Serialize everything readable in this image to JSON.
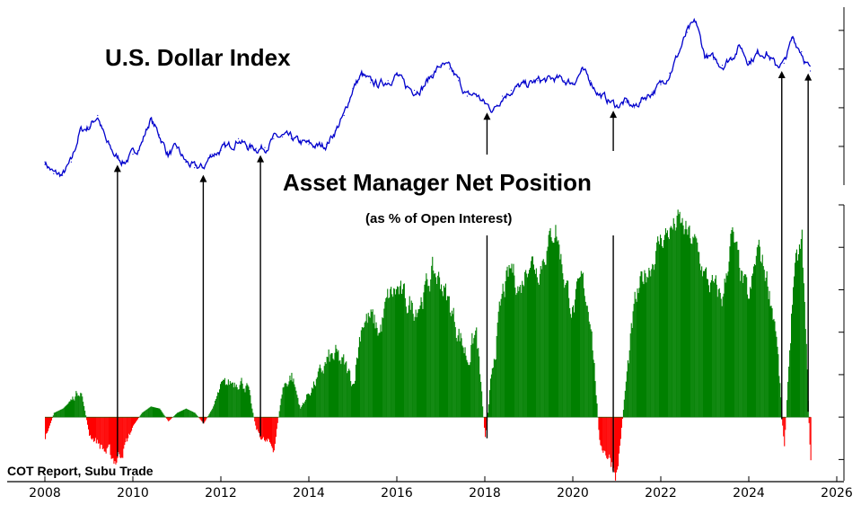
{
  "chart_data": [
    {
      "type": "line",
      "title": "U.S. Dollar Index",
      "x_unit": "year",
      "xlim": [
        2008,
        2026
      ],
      "ylim": [
        70,
        116
      ],
      "color": "#0000cc",
      "axis_position": "right",
      "y_tick_labels_shown": false,
      "x": [
        2008.0,
        2008.2,
        2008.4,
        2008.6,
        2008.8,
        2009.0,
        2009.2,
        2009.4,
        2009.6,
        2009.8,
        2010.0,
        2010.2,
        2010.4,
        2010.6,
        2010.8,
        2011.0,
        2011.2,
        2011.4,
        2011.6,
        2011.8,
        2012.0,
        2012.2,
        2012.4,
        2012.6,
        2012.8,
        2013.0,
        2013.2,
        2013.4,
        2013.6,
        2013.8,
        2014.0,
        2014.2,
        2014.4,
        2014.6,
        2014.8,
        2015.0,
        2015.2,
        2015.4,
        2015.6,
        2015.8,
        2016.0,
        2016.2,
        2016.4,
        2016.6,
        2016.8,
        2017.0,
        2017.2,
        2017.4,
        2017.6,
        2017.8,
        2018.0,
        2018.2,
        2018.4,
        2018.6,
        2018.8,
        2019.0,
        2019.2,
        2019.4,
        2019.6,
        2019.8,
        2020.0,
        2020.2,
        2020.4,
        2020.6,
        2020.8,
        2021.0,
        2021.2,
        2021.4,
        2021.6,
        2021.8,
        2022.0,
        2022.2,
        2022.4,
        2022.6,
        2022.8,
        2023.0,
        2023.2,
        2023.4,
        2023.6,
        2023.8,
        2024.0,
        2024.2,
        2024.4,
        2024.6,
        2024.8,
        2025.0,
        2025.2,
        2025.4
      ],
      "values": [
        76.0,
        73.0,
        72.5,
        76.0,
        84.0,
        85.0,
        88.0,
        81.0,
        77.5,
        76.0,
        78.0,
        81.0,
        87.0,
        83.0,
        78.0,
        79.5,
        76.0,
        74.5,
        74.5,
        78.0,
        79.0,
        80.0,
        82.0,
        80.0,
        79.5,
        79.7,
        82.0,
        82.5,
        82.0,
        81.0,
        80.5,
        80.0,
        80.5,
        84.0,
        88.0,
        95.0,
        98.5,
        96.5,
        96.0,
        97.0,
        98.5,
        95.5,
        94.5,
        95.5,
        98.5,
        101.0,
        100.0,
        97.0,
        93.0,
        93.5,
        91.0,
        89.5,
        93.0,
        94.5,
        95.5,
        96.0,
        97.0,
        97.0,
        97.5,
        97.0,
        96.5,
        99.5,
        97.0,
        93.5,
        92.0,
        90.5,
        91.5,
        90.0,
        92.5,
        94.0,
        96.0,
        99.0,
        104.0,
        109.5,
        112.0,
        103.5,
        102.5,
        101.0,
        103.0,
        106.0,
        102.0,
        104.0,
        104.5,
        101.0,
        101.5,
        108.0,
        104.5,
        99.5
      ]
    },
    {
      "type": "area",
      "title": "Asset Manager Net Position",
      "subtitle": "(as % of Open Interest)",
      "x_unit": "year",
      "xlim": [
        2008,
        2026
      ],
      "ylim": [
        -15,
        50
      ],
      "positive_color": "#008000",
      "negative_color": "#ff0000",
      "axis_position": "right",
      "y_tick_labels_shown": false,
      "x": [
        2008.0,
        2008.2,
        2008.4,
        2008.6,
        2008.8,
        2009.0,
        2009.2,
        2009.4,
        2009.6,
        2009.8,
        2010.0,
        2010.2,
        2010.4,
        2010.6,
        2010.8,
        2011.0,
        2011.2,
        2011.4,
        2011.6,
        2011.8,
        2012.0,
        2012.2,
        2012.4,
        2012.6,
        2012.8,
        2013.0,
        2013.2,
        2013.4,
        2013.6,
        2013.8,
        2014.0,
        2014.2,
        2014.4,
        2014.6,
        2014.8,
        2015.0,
        2015.2,
        2015.4,
        2015.6,
        2015.8,
        2016.0,
        2016.2,
        2016.4,
        2016.6,
        2016.8,
        2017.0,
        2017.2,
        2017.4,
        2017.6,
        2017.8,
        2018.0,
        2018.2,
        2018.4,
        2018.6,
        2018.8,
        2019.0,
        2019.2,
        2019.4,
        2019.6,
        2019.8,
        2020.0,
        2020.2,
        2020.4,
        2020.6,
        2020.8,
        2021.0,
        2021.2,
        2021.4,
        2021.6,
        2021.8,
        2022.0,
        2022.2,
        2022.4,
        2022.6,
        2022.8,
        2023.0,
        2023.2,
        2023.4,
        2023.6,
        2023.8,
        2024.0,
        2024.2,
        2024.4,
        2024.6,
        2024.8,
        2025.0,
        2025.2,
        2025.4
      ],
      "values": [
        -5.0,
        1.0,
        2.0,
        4.0,
        7.0,
        -4.0,
        -6.0,
        -8.5,
        -10.0,
        -7.0,
        -2.0,
        1.0,
        2.5,
        2.0,
        -1.0,
        1.0,
        2.0,
        1.0,
        -1.5,
        2.0,
        7.0,
        8.0,
        9.0,
        7.0,
        -3.0,
        -6.0,
        -7.0,
        7.0,
        10.0,
        2.0,
        6.0,
        9.0,
        13.0,
        14.0,
        12.0,
        8.0,
        23.0,
        23.0,
        20.0,
        28.0,
        30.0,
        27.0,
        26.0,
        29.0,
        34.0,
        32.0,
        26.0,
        20.0,
        14.0,
        20.0,
        -5.0,
        15.0,
        29.0,
        35.0,
        30.0,
        38.0,
        35.0,
        40.0,
        45.0,
        33.0,
        25.0,
        32.0,
        24.0,
        -6.0,
        -9.0,
        -13.0,
        8.0,
        26.0,
        33.0,
        37.0,
        42.0,
        44.0,
        46.0,
        43.0,
        40.0,
        33.0,
        30.0,
        28.0,
        43.0,
        34.0,
        27.0,
        40.0,
        33.0,
        22.0,
        -8.0,
        32.0,
        41.0,
        -12.0
      ]
    }
  ],
  "x_axis": {
    "tick_labels": [
      "2008",
      "2010",
      "2012",
      "2014",
      "2016",
      "2018",
      "2020",
      "2022",
      "2024",
      "2026"
    ]
  },
  "annotation_years": [
    2009.65,
    2011.6,
    2012.9,
    2018.05,
    2020.92,
    2024.75,
    2025.35
  ],
  "credit": "COT Report, Subu Trade"
}
